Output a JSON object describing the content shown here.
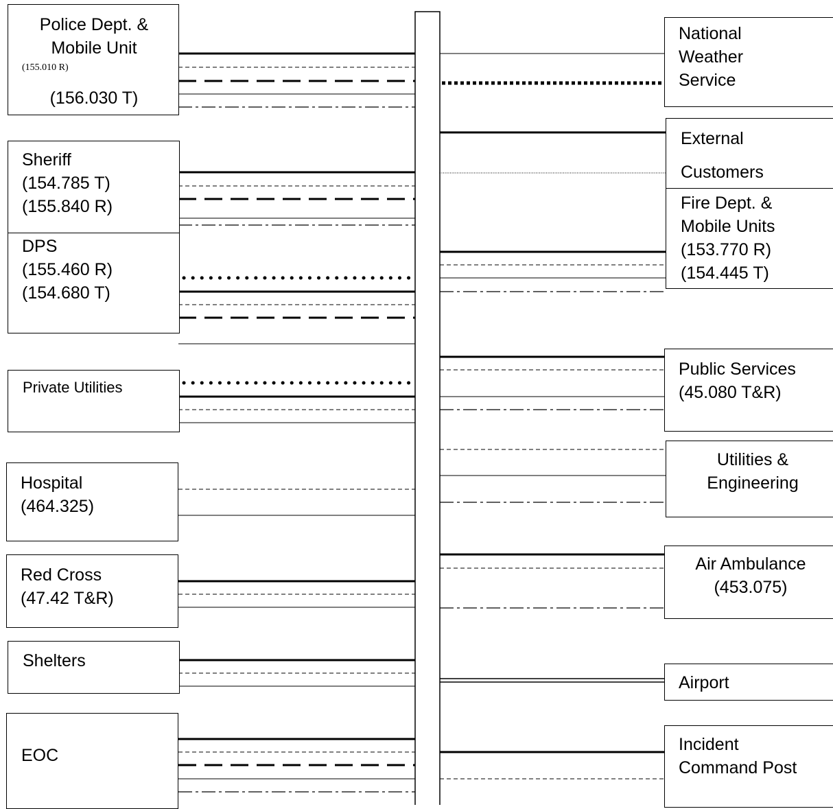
{
  "left_boxes": {
    "police": {
      "name": "Police Dept. & Mobile Unit",
      "line1": "Police Dept. &",
      "line2": "Mobile Unit",
      "freq_r": "(155.010 R)",
      "freq_t": "(156.030 T)"
    },
    "sheriff": {
      "name": "Sheriff",
      "freq_t": "(154.785 T)",
      "freq_r": "(155.840 R)"
    },
    "dps": {
      "name": "DPS",
      "freq_r": "(155.460 R)",
      "freq_t": "(154.680 T)"
    },
    "private_utilities": {
      "name": "Private Utilities"
    },
    "hospital": {
      "name": "Hospital",
      "freq": "(464.325)"
    },
    "red_cross": {
      "name": "Red Cross",
      "freq": "(47.42 T&R)"
    },
    "shelters": {
      "name": "Shelters"
    },
    "eoc": {
      "name": "EOC"
    }
  },
  "right_boxes": {
    "weather": {
      "line1": "National",
      "line2": "Weather",
      "line3": "Service"
    },
    "external": {
      "line1": "External",
      "line2": "Customers"
    },
    "fire": {
      "line1": "Fire Dept. &",
      "line2": "Mobile Units",
      "freq_r": "(153.770 R)",
      "freq_t": "(154.445 T)"
    },
    "public_services": {
      "name": "Public Services",
      "freq": "(45.080 T&R)"
    },
    "utilities_eng": {
      "line1": "Utilities &",
      "line2": "Engineering"
    },
    "air_ambulance": {
      "name": "Air Ambulance",
      "freq": "(453.075)"
    },
    "airport": {
      "name": "Airport"
    },
    "icp": {
      "line1": "Incident",
      "line2": "Command Post"
    }
  },
  "line_styles": {
    "solid_thick": "thick solid",
    "solid_thin": "thin solid",
    "short_dash": "short dash",
    "long_dash": "long dash",
    "dash_dot": "dash-dot",
    "dotted": "dotted",
    "color": "#000000"
  }
}
